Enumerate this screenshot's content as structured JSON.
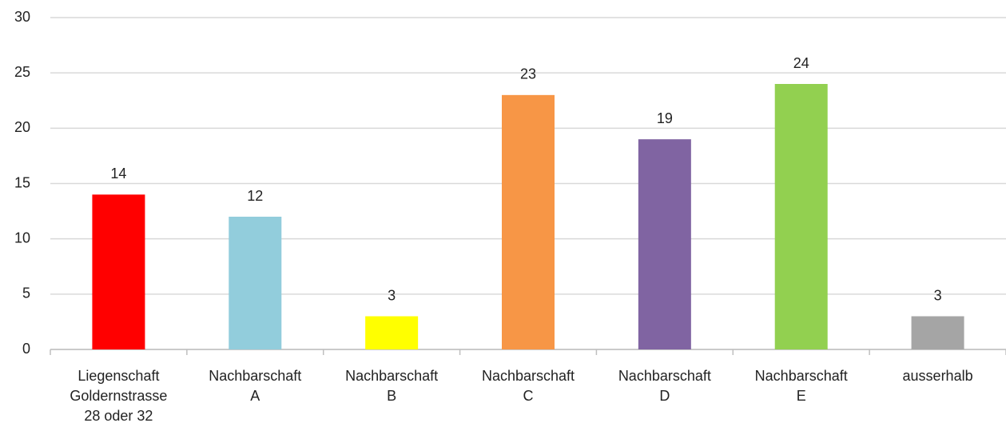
{
  "chart_data": {
    "type": "bar",
    "categories": [
      "Liegenschaft\nGoldernstrasse\n28 oder 32",
      "Nachbarschaft\nA",
      "Nachbarschaft\nB",
      "Nachbarschaft\nC",
      "Nachbarschaft\nD",
      "Nachbarschaft\nE",
      "ausserhalb"
    ],
    "values": [
      14,
      12,
      3,
      23,
      19,
      24,
      3
    ],
    "colors": [
      "#ff0000",
      "#92cddc",
      "#ffff00",
      "#f79646",
      "#8064a2",
      "#92d050",
      "#a5a5a5"
    ],
    "ylim": [
      0,
      30
    ],
    "yticks": [
      0,
      5,
      10,
      15,
      20,
      25,
      30
    ],
    "grid": true
  }
}
